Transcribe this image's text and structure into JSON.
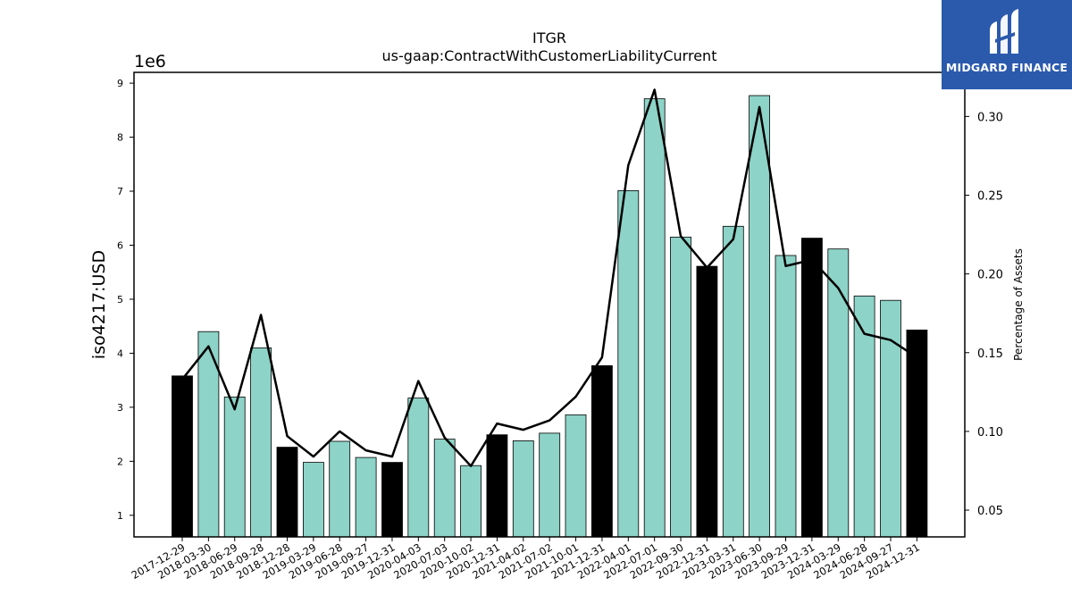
{
  "chart_data": {
    "type": "bar",
    "title": "ITGR",
    "subtitle": "us-gaap:ContractWithCustomerLiabilityCurrent",
    "ylabel": "iso4217:USD",
    "y_offset_label": "1e6",
    "y2label": "Percentage of Assets",
    "ylim": [
      0.6,
      9.2
    ],
    "y2lim": [
      0.033,
      0.328
    ],
    "yticks": [
      1,
      2,
      3,
      4,
      5,
      6,
      7,
      8,
      9
    ],
    "y2ticks": [
      "0.05",
      "0.10",
      "0.15",
      "0.20",
      "0.25",
      "0.30"
    ],
    "categories": [
      "2017-12-29",
      "2018-03-30",
      "2018-06-29",
      "2018-09-28",
      "2018-12-28",
      "2019-03-29",
      "2019-06-28",
      "2019-09-27",
      "2019-12-31",
      "2020-04-03",
      "2020-07-03",
      "2020-10-02",
      "2020-12-31",
      "2021-04-02",
      "2021-07-02",
      "2021-10-01",
      "2021-12-31",
      "2022-04-01",
      "2022-07-01",
      "2022-09-30",
      "2022-12-31",
      "2023-03-31",
      "2023-06-30",
      "2023-09-29",
      "2023-12-31",
      "2024-03-29",
      "2024-06-28",
      "2024-09-27",
      "2024-12-31"
    ],
    "series": [
      {
        "type": "bar",
        "values": [
          3.58,
          4.4,
          3.19,
          4.1,
          2.26,
          1.98,
          2.37,
          2.07,
          1.98,
          3.17,
          2.41,
          1.92,
          2.49,
          2.38,
          2.52,
          2.86,
          3.77,
          7.01,
          8.71,
          6.15,
          5.61,
          6.35,
          8.77,
          5.81,
          6.13,
          5.93,
          5.06,
          4.98,
          4.43
        ],
        "year_end_color": "#000000",
        "quarter_color": "#8dd3c7"
      },
      {
        "type": "line",
        "axis": "right",
        "values": [
          0.133,
          0.154,
          0.114,
          0.174,
          0.097,
          0.084,
          0.1,
          0.088,
          0.084,
          0.132,
          0.096,
          0.078,
          0.105,
          0.101,
          0.107,
          0.122,
          0.147,
          0.269,
          0.317,
          0.224,
          0.204,
          0.222,
          0.306,
          0.205,
          0.209,
          0.191,
          0.162,
          0.158,
          0.147
        ],
        "color": "#000000"
      }
    ],
    "grid": false
  },
  "logo": {
    "text": "MIDGARD FINANCE",
    "color": "#2b5aad"
  }
}
